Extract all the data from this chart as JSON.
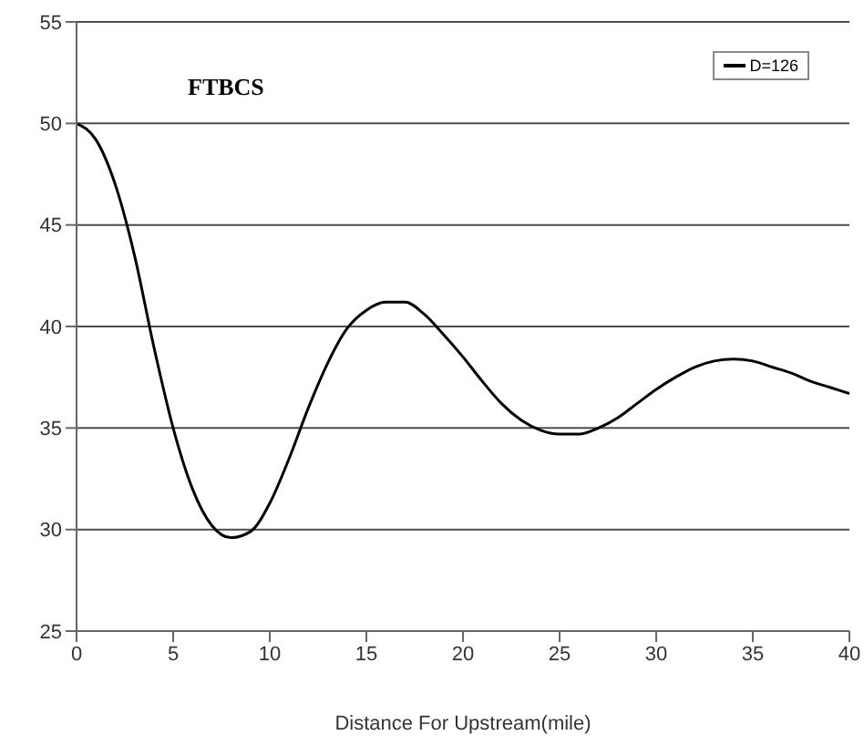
{
  "chart_data": {
    "type": "line",
    "title": "FTBCS",
    "xlabel": "Distance For Upstream(mile)",
    "x": [
      0,
      1,
      2,
      3,
      4,
      5,
      6,
      7,
      8,
      9,
      10,
      11,
      12,
      13,
      14,
      15,
      16,
      17,
      18,
      19,
      20,
      21,
      22,
      23,
      24,
      25,
      26,
      27,
      28,
      29,
      30,
      31,
      32,
      33,
      34,
      35,
      36,
      37,
      38,
      39,
      40
    ],
    "series": [
      {
        "name": "D=126",
        "color": "#000000",
        "values": [
          50,
          49.2,
          47,
          43.5,
          39,
          35,
          32,
          30.2,
          29.6,
          29.9,
          31.3,
          33.5,
          36,
          38.2,
          39.9,
          40.8,
          41.2,
          41.2,
          40.6,
          39.6,
          38.5,
          37.3,
          36.2,
          35.4,
          34.9,
          34.7,
          34.7,
          35,
          35.5,
          36.2,
          36.9,
          37.5,
          38,
          38.3,
          38.4,
          38.3,
          38,
          37.7,
          37.3,
          37,
          36.7
        ]
      }
    ],
    "xlim": [
      0,
      40
    ],
    "xticks": [
      0,
      5,
      10,
      15,
      20,
      25,
      30,
      35,
      40
    ],
    "ylim": [
      25,
      55
    ],
    "yticks": [
      25,
      30,
      35,
      40,
      45,
      50,
      55
    ],
    "grid": "y",
    "legend": "top right",
    "marker": "none",
    "line_style": "solid"
  }
}
